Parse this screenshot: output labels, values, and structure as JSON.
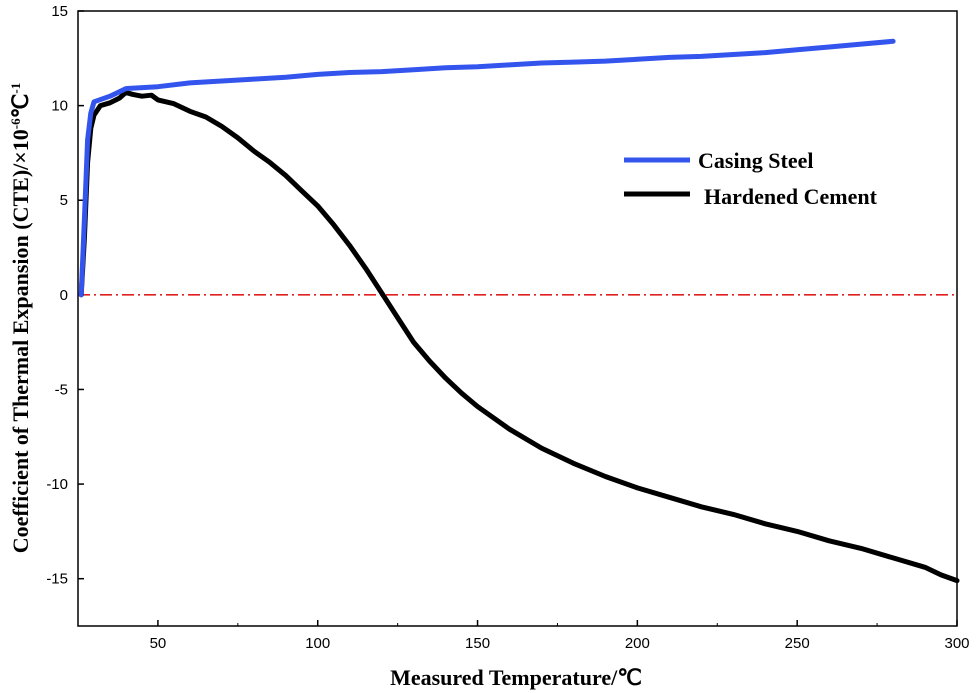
{
  "chart_data": {
    "type": "line",
    "title": "",
    "xlabel": "Measured Temperature/℃",
    "ylabel_main": "Coefficient  of Thermal Expansion (CTE)/×10",
    "ylabel_sup1": "-6",
    "ylabel_unit": "℃",
    "ylabel_sup2": "-1",
    "xlim": [
      25,
      300
    ],
    "ylim": [
      -17.5,
      15
    ],
    "xticks": [
      50,
      100,
      150,
      200,
      250,
      300
    ],
    "yticks": [
      -15,
      -10,
      -5,
      0,
      5,
      10,
      15
    ],
    "xtick_labels": [
      "50",
      "100",
      "150",
      "200",
      "250",
      "300"
    ],
    "ytick_labels": [
      "-15",
      "-10",
      "-5",
      "0",
      "5",
      "10",
      "15"
    ],
    "legend_position": "upper-right",
    "reference_line": {
      "y": 0,
      "color": "#e02020",
      "style": "dash-dot"
    },
    "series": [
      {
        "name": "Casing Steel",
        "color": "#3355ee",
        "x": [
          26,
          27,
          28,
          29,
          30,
          35,
          40,
          50,
          60,
          70,
          80,
          90,
          100,
          110,
          120,
          130,
          140,
          150,
          160,
          170,
          180,
          190,
          200,
          210,
          220,
          230,
          240,
          250,
          260,
          270,
          280
        ],
        "y": [
          0,
          4.0,
          8.2,
          9.6,
          10.2,
          10.5,
          10.9,
          11.0,
          11.2,
          11.3,
          11.4,
          11.5,
          11.65,
          11.75,
          11.8,
          11.9,
          12.0,
          12.05,
          12.15,
          12.25,
          12.3,
          12.35,
          12.45,
          12.55,
          12.6,
          12.7,
          12.8,
          12.95,
          13.1,
          13.25,
          13.4
        ]
      },
      {
        "name": "Hardened Cement",
        "color": "#000000",
        "x": [
          26,
          27,
          28,
          29,
          30,
          32,
          35,
          38,
          40,
          42,
          45,
          48,
          50,
          55,
          60,
          65,
          70,
          75,
          80,
          85,
          90,
          95,
          100,
          105,
          110,
          115,
          120,
          125,
          130,
          135,
          140,
          145,
          150,
          160,
          170,
          180,
          190,
          200,
          210,
          220,
          230,
          240,
          250,
          260,
          270,
          280,
          290,
          295,
          300
        ],
        "y": [
          0,
          3.0,
          7.0,
          8.8,
          9.5,
          10.0,
          10.15,
          10.4,
          10.7,
          10.6,
          10.5,
          10.55,
          10.3,
          10.1,
          9.7,
          9.4,
          8.9,
          8.3,
          7.6,
          7.0,
          6.3,
          5.5,
          4.7,
          3.7,
          2.6,
          1.4,
          0.1,
          -1.2,
          -2.5,
          -3.5,
          -4.4,
          -5.2,
          -5.9,
          -7.1,
          -8.1,
          -8.9,
          -9.6,
          -10.2,
          -10.7,
          -11.2,
          -11.6,
          -12.1,
          -12.5,
          -13.0,
          -13.4,
          -13.9,
          -14.4,
          -14.8,
          -15.1
        ]
      }
    ]
  }
}
